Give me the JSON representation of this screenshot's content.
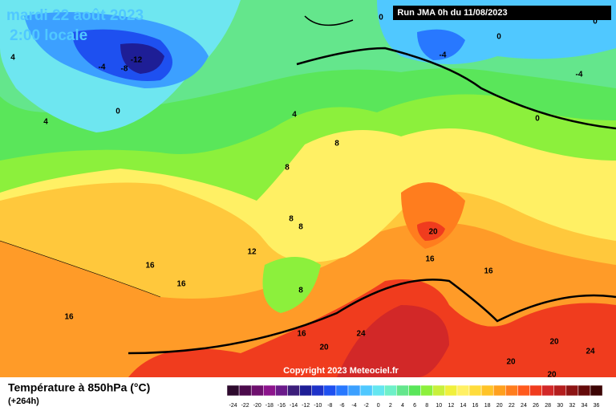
{
  "header": {
    "date": "mardi 22 août 2023",
    "time": "2:00 locale",
    "run": "Run JMA 0h du 11/08/2023"
  },
  "footer": {
    "title": "Température à 850hPa (°C)",
    "lead": "(+264h)",
    "copyright": "Copyright 2023 Meteociel.fr"
  },
  "scale": {
    "values": [
      -24,
      -22,
      -20,
      -18,
      -16,
      -14,
      -12,
      -10,
      -8,
      -6,
      -4,
      -2,
      0,
      2,
      4,
      6,
      8,
      10,
      12,
      14,
      16,
      18,
      20,
      22,
      24,
      26,
      28,
      30,
      32,
      34,
      36
    ],
    "colors": [
      "#2d0a2d",
      "#4b0a4b",
      "#6e106e",
      "#8c148c",
      "#6a1a8a",
      "#3c1e7a",
      "#1e1e96",
      "#1e32c8",
      "#1e50f0",
      "#2878ff",
      "#3ca0ff",
      "#50c8ff",
      "#64e6f0",
      "#6ef0c8",
      "#64e68c",
      "#5ae65a",
      "#8cf03c",
      "#c8f03c",
      "#f0f03c",
      "#fff064",
      "#ffdc3c",
      "#ffc328",
      "#ffa01e",
      "#ff7d1e",
      "#ff5a1e",
      "#f03c1e",
      "#d22828",
      "#b41e1e",
      "#8c1414",
      "#640a0a",
      "#3c0505"
    ]
  },
  "contours": [
    -12,
    -4,
    -8,
    4,
    0,
    4,
    0,
    0,
    -4,
    -4,
    0,
    4,
    8,
    8,
    8,
    8,
    0,
    20,
    16,
    16,
    12,
    16,
    16,
    16,
    8,
    16,
    24,
    20,
    20,
    24,
    20,
    20
  ]
}
